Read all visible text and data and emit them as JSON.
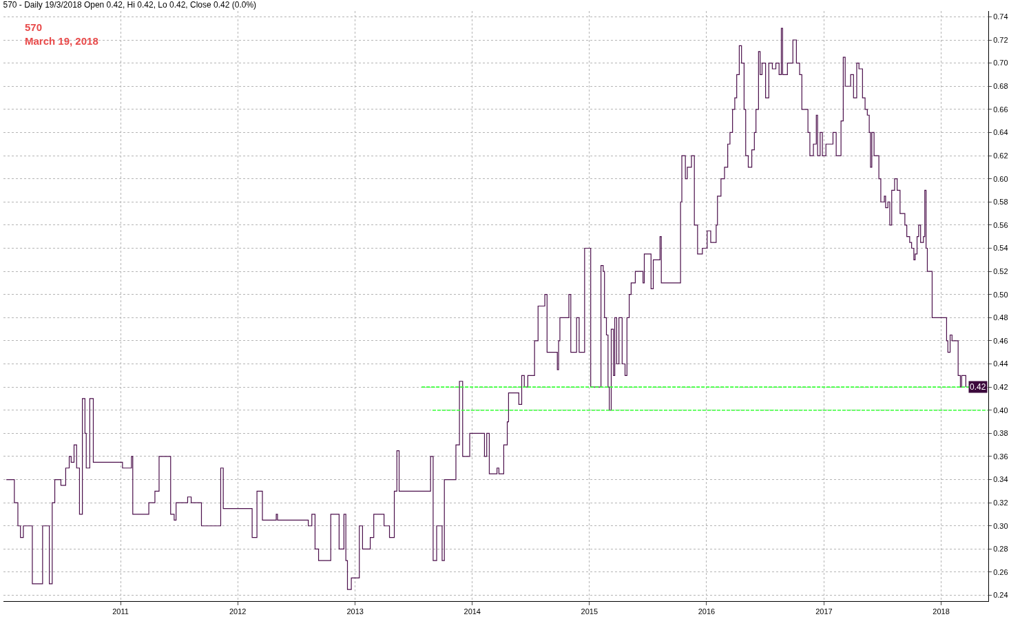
{
  "chart_data": {
    "type": "step",
    "title": "570 - Daily 19/3/2018 Open 0.42, Hi 0.42, Lo 0.42, Close 0.42 (0.0%)",
    "annotations": [
      "570",
      "March 19, 2018",
      {
        "text": "0.42",
        "x": "2018-05-28",
        "y": 0.42
      }
    ],
    "series": [
      {
        "color": "#4b0f4b",
        "x": [
          "2010-01-10",
          "2010-02-04",
          "2010-02-15",
          "2010-02-23",
          "2010-03-04",
          "2010-04-01",
          "2010-05-03",
          "2010-05-24",
          "2010-06-02",
          "2010-06-10",
          "2010-06-29",
          "2010-07-14",
          "2010-07-25",
          "2010-07-31",
          "2010-08-09",
          "2010-08-17",
          "2010-08-26",
          "2010-09-04",
          "2010-09-12",
          "2010-09-16",
          "2010-09-27",
          "2010-10-08",
          "2011-01-07",
          "2011-01-31",
          "2011-02-04",
          "2011-02-08",
          "2011-03-23",
          "2011-03-30",
          "2011-04-18",
          "2011-05-01",
          "2011-05-30",
          "2011-06-06",
          "2011-06-17",
          "2011-06-23",
          "2011-07-29",
          "2011-08-09",
          "2011-09-10",
          "2011-11-02",
          "2011-11-09",
          "2011-11-17",
          "2012-02-04",
          "2012-02-15",
          "2012-03-01",
          "2012-03-18",
          "2012-04-23",
          "2012-04-30",
          "2012-05-04",
          "2012-08-08",
          "2012-08-19",
          "2012-08-29",
          "2012-09-09",
          "2012-10-11",
          "2012-10-17",
          "2012-11-01",
          "2012-11-12",
          "2012-11-27",
          "2012-12-03",
          "2012-12-08",
          "2012-12-20",
          "2013-01-10",
          "2013-01-14",
          "2013-01-24",
          "2013-02-06",
          "2013-02-17",
          "2013-02-28",
          "2013-03-25",
          "2013-04-01",
          "2013-04-18",
          "2013-05-03",
          "2013-05-11",
          "2013-05-18",
          "2013-08-17",
          "2013-08-24",
          "2013-09-01",
          "2013-09-12",
          "2013-09-21",
          "2013-09-29",
          "2013-10-06",
          "2013-10-31",
          "2013-11-11",
          "2013-11-22",
          "2013-12-02",
          "2013-12-24",
          "2014-01-29",
          "2014-02-08",
          "2014-02-15",
          "2014-02-23",
          "2014-03-19",
          "2014-03-25",
          "2014-04-09",
          "2014-04-20",
          "2014-04-24",
          "2014-05-11",
          "2014-05-26",
          "2014-06-04",
          "2014-06-12",
          "2014-06-23",
          "2014-07-04",
          "2014-07-14",
          "2014-07-25",
          "2014-08-15",
          "2014-08-22",
          "2014-09-16",
          "2014-09-23",
          "2014-09-27",
          "2014-10-01",
          "2014-10-25",
          "2014-10-29",
          "2014-11-04",
          "2014-11-22",
          "2014-11-30",
          "2014-12-13",
          "2014-12-17",
          "2014-12-26",
          "2015-01-05",
          "2015-02-02",
          "2015-02-06",
          "2015-02-13",
          "2015-02-17",
          "2015-02-23",
          "2015-02-28",
          "2015-03-04",
          "2015-03-10",
          "2015-03-17",
          "2015-03-21",
          "2015-03-27",
          "2015-04-03",
          "2015-04-13",
          "2015-04-22",
          "2015-04-28",
          "2015-05-05",
          "2015-05-11",
          "2015-05-24",
          "2015-06-10",
          "2015-06-17",
          "2015-06-21",
          "2015-07-06",
          "2015-07-12",
          "2015-07-19",
          "2015-08-03",
          "2015-08-09",
          "2015-08-13",
          "2015-10-10",
          "2015-10-12",
          "2015-10-16",
          "2015-10-27",
          "2015-11-02",
          "2015-11-15",
          "2015-11-24",
          "2015-12-04",
          "2015-12-19",
          "2016-01-03",
          "2016-01-14",
          "2016-01-31",
          "2016-02-04",
          "2016-02-15",
          "2016-02-26",
          "2016-03-07",
          "2016-03-14",
          "2016-03-22",
          "2016-03-29",
          "2016-04-04",
          "2016-04-12",
          "2016-04-19",
          "2016-04-27",
          "2016-05-02",
          "2016-05-10",
          "2016-05-21",
          "2016-05-29",
          "2016-06-03",
          "2016-06-11",
          "2016-06-16",
          "2016-06-22",
          "2016-07-03",
          "2016-07-13",
          "2016-07-24",
          "2016-08-04",
          "2016-08-14",
          "2016-08-21",
          "2016-08-25",
          "2016-09-09",
          "2016-09-26",
          "2016-10-07",
          "2016-10-17",
          "2016-10-24",
          "2016-11-12",
          "2016-11-18",
          "2016-11-29",
          "2016-12-08",
          "2016-12-12",
          "2016-12-20",
          "2016-12-27",
          "2017-01-07",
          "2017-01-29",
          "2017-02-08",
          "2017-02-23",
          "2017-03-02",
          "2017-03-08",
          "2017-03-25",
          "2017-04-03",
          "2017-04-13",
          "2017-04-20",
          "2017-05-01",
          "2017-05-09",
          "2017-05-16",
          "2017-05-22",
          "2017-05-26",
          "2017-05-30",
          "2017-06-06",
          "2017-06-21",
          "2017-06-27",
          "2017-07-08",
          "2017-07-12",
          "2017-07-19",
          "2017-07-25",
          "2017-07-31",
          "2017-08-09",
          "2017-08-17",
          "2017-08-26",
          "2017-09-10",
          "2017-09-16",
          "2017-09-25",
          "2017-10-01",
          "2017-10-08",
          "2017-10-12",
          "2017-10-18",
          "2017-10-23",
          "2017-10-29",
          "2017-11-07",
          "2017-11-11",
          "2017-11-15",
          "2017-11-19",
          "2017-12-04",
          "2018-01-12",
          "2018-01-18",
          "2018-01-22",
          "2018-01-29",
          "2018-02-04",
          "2018-02-23",
          "2018-03-02",
          "2018-03-06",
          "2018-03-19"
        ],
        "values": [
          0.34,
          0.32,
          0.3,
          0.29,
          0.3,
          0.25,
          0.3,
          0.25,
          0.32,
          0.34,
          0.335,
          0.35,
          0.36,
          0.355,
          0.37,
          0.35,
          0.31,
          0.41,
          0.38,
          0.35,
          0.41,
          0.355,
          0.35,
          0.35,
          0.36,
          0.31,
          0.31,
          0.32,
          0.33,
          0.36,
          0.36,
          0.31,
          0.305,
          0.32,
          0.325,
          0.32,
          0.3,
          0.3,
          0.35,
          0.315,
          0.315,
          0.29,
          0.33,
          0.305,
          0.305,
          0.31,
          0.305,
          0.3,
          0.31,
          0.28,
          0.27,
          0.27,
          0.31,
          0.31,
          0.28,
          0.31,
          0.27,
          0.245,
          0.255,
          0.255,
          0.3,
          0.28,
          0.28,
          0.29,
          0.31,
          0.31,
          0.3,
          0.29,
          0.33,
          0.365,
          0.33,
          0.33,
          0.36,
          0.27,
          0.3,
          0.3,
          0.27,
          0.34,
          0.34,
          0.37,
          0.425,
          0.36,
          0.38,
          0.38,
          0.36,
          0.38,
          0.345,
          0.35,
          0.345,
          0.37,
          0.39,
          0.415,
          0.415,
          0.405,
          0.43,
          0.42,
          0.43,
          0.43,
          0.46,
          0.49,
          0.5,
          0.45,
          0.45,
          0.435,
          0.46,
          0.48,
          0.48,
          0.5,
          0.45,
          0.48,
          0.45,
          0.45,
          0.54,
          0.54,
          0.42,
          0.42,
          0.525,
          0.52,
          0.48,
          0.465,
          0.42,
          0.4,
          0.47,
          0.43,
          0.48,
          0.44,
          0.48,
          0.44,
          0.43,
          0.48,
          0.5,
          0.51,
          0.52,
          0.52,
          0.51,
          0.535,
          0.535,
          0.505,
          0.53,
          0.53,
          0.55,
          0.51,
          0.51,
          0.58,
          0.62,
          0.6,
          0.61,
          0.62,
          0.56,
          0.535,
          0.54,
          0.555,
          0.545,
          0.56,
          0.585,
          0.6,
          0.61,
          0.63,
          0.64,
          0.66,
          0.67,
          0.69,
          0.715,
          0.7,
          0.66,
          0.62,
          0.61,
          0.625,
          0.64,
          0.66,
          0.71,
          0.69,
          0.7,
          0.67,
          0.7,
          0.695,
          0.7,
          0.69,
          0.73,
          0.69,
          0.7,
          0.72,
          0.7,
          0.69,
          0.66,
          0.64,
          0.62,
          0.63,
          0.655,
          0.62,
          0.64,
          0.62,
          0.63,
          0.64,
          0.62,
          0.65,
          0.705,
          0.68,
          0.69,
          0.67,
          0.7,
          0.695,
          0.67,
          0.66,
          0.655,
          0.64,
          0.61,
          0.64,
          0.62,
          0.6,
          0.58,
          0.585,
          0.575,
          0.58,
          0.56,
          0.59,
          0.6,
          0.59,
          0.57,
          0.56,
          0.55,
          0.545,
          0.54,
          0.53,
          0.535,
          0.55,
          0.56,
          0.545,
          0.55,
          0.59,
          0.54,
          0.52,
          0.48,
          0.48,
          0.46,
          0.45,
          0.465,
          0.46,
          0.43,
          0.42,
          0.43,
          0.42
        ]
      },
      {
        "type": "line",
        "color": "#33ff33",
        "line_style": "dashed",
        "x": [
          "2013-07-27",
          "2018-04-24"
        ],
        "values": [
          0.42,
          0.42
        ]
      },
      {
        "type": "line",
        "color": "#33ff33",
        "line_style": "dashed",
        "x": [
          "2013-08-30",
          "2018-05-26"
        ],
        "values": [
          0.4,
          0.4
        ]
      }
    ],
    "xlim": [
      "2010-01-01",
      "2018-05-28"
    ],
    "xticks": [
      {
        "value": "2011-01-01",
        "label": "2011"
      },
      {
        "value": "2012-01-01",
        "label": "2012"
      },
      {
        "value": "2013-01-01",
        "label": "2013"
      },
      {
        "value": "2014-01-01",
        "label": "2014"
      },
      {
        "value": "2015-01-01",
        "label": "2015"
      },
      {
        "value": "2016-01-01",
        "label": "2016"
      },
      {
        "value": "2017-01-01",
        "label": "2017"
      },
      {
        "value": "2018-01-01",
        "label": "2018"
      }
    ],
    "ylim": [
      0.235,
      0.745
    ],
    "yticks": [
      {
        "value": 0.24,
        "label": "0.24"
      },
      {
        "value": 0.26,
        "label": "0.26"
      },
      {
        "value": 0.28,
        "label": "0.28"
      },
      {
        "value": 0.3,
        "label": "0.30"
      },
      {
        "value": 0.32,
        "label": "0.32"
      },
      {
        "value": 0.34,
        "label": "0.34"
      },
      {
        "value": 0.36,
        "label": "0.36"
      },
      {
        "value": 0.38,
        "label": "0.38"
      },
      {
        "value": 0.4,
        "label": "0.40"
      },
      {
        "value": 0.42,
        "label": "0.42"
      },
      {
        "value": 0.44,
        "label": "0.44"
      },
      {
        "value": 0.46,
        "label": "0.46"
      },
      {
        "value": 0.48,
        "label": "0.48"
      },
      {
        "value": 0.5,
        "label": "0.50"
      },
      {
        "value": 0.52,
        "label": "0.52"
      },
      {
        "value": 0.54,
        "label": "0.54"
      },
      {
        "value": 0.56,
        "label": "0.56"
      },
      {
        "value": 0.58,
        "label": "0.58"
      },
      {
        "value": 0.6,
        "label": "0.60"
      },
      {
        "value": 0.62,
        "label": "0.62"
      },
      {
        "value": 0.64,
        "label": "0.64"
      },
      {
        "value": 0.66,
        "label": "0.66"
      },
      {
        "value": 0.68,
        "label": "0.68"
      },
      {
        "value": 0.7,
        "label": "0.70"
      },
      {
        "value": 0.72,
        "label": "0.72"
      },
      {
        "value": 0.74,
        "label": "0.74"
      }
    ],
    "grid": true
  }
}
